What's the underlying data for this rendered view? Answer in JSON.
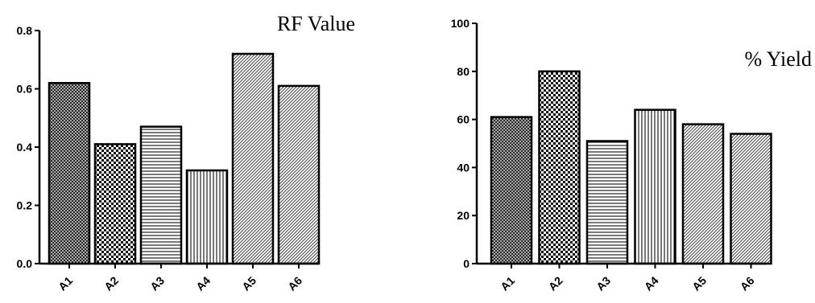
{
  "chart_data": [
    {
      "type": "bar",
      "title": "RF Value",
      "categories": [
        "A1",
        "A2",
        "A3",
        "A4",
        "A5",
        "A6"
      ],
      "values": [
        0.62,
        0.41,
        0.47,
        0.32,
        0.72,
        0.61
      ],
      "yticks": [
        "0.0",
        "0.2",
        "0.4",
        "0.6",
        "0.8"
      ],
      "ylim": [
        0,
        0.8
      ],
      "xlabel": "",
      "ylabel": "",
      "grid": false,
      "bar_patterns": [
        "crosshatch-dense",
        "checker",
        "horizontal",
        "vertical",
        "diagonal",
        "diagonal"
      ]
    },
    {
      "type": "bar",
      "title": "% Yield",
      "categories": [
        "A1",
        "A2",
        "A3",
        "A4",
        "A5",
        "A6"
      ],
      "values": [
        61,
        80,
        51,
        64,
        58,
        54
      ],
      "yticks": [
        "0",
        "20",
        "40",
        "60",
        "80",
        "100"
      ],
      "ylim": [
        0,
        100
      ],
      "xlabel": "",
      "ylabel": "",
      "grid": false,
      "bar_patterns": [
        "crosshatch-dense",
        "checker",
        "horizontal",
        "vertical",
        "diagonal",
        "diagonal"
      ]
    }
  ]
}
